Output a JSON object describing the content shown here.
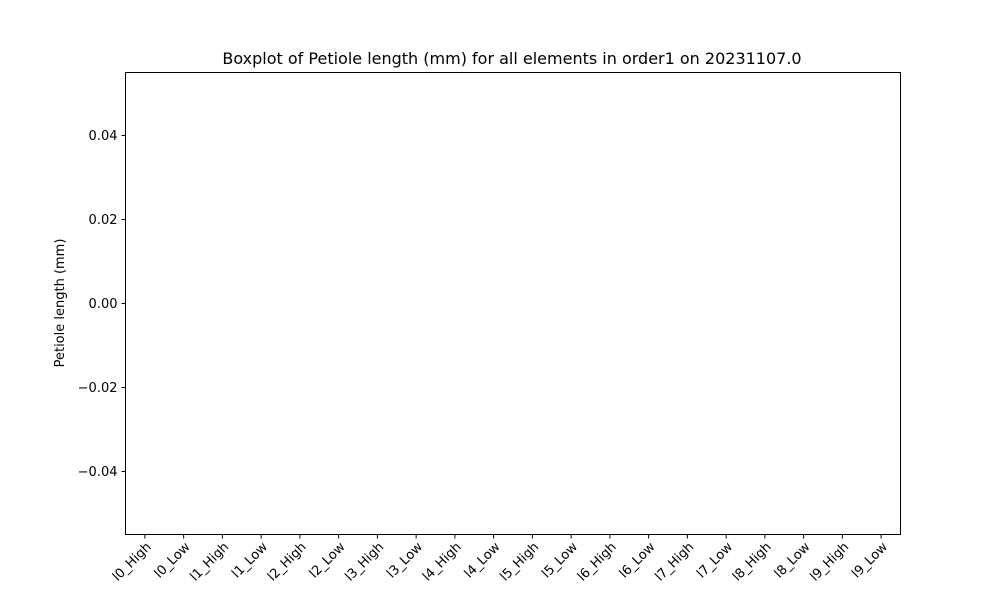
{
  "chart_data": {
    "type": "boxplot",
    "title": "Boxplot of Petiole length (mm) for all elements in order1 on 20231107.0",
    "xlabel": "",
    "ylabel": "Petiole length (mm)",
    "ylim": [
      -0.055,
      0.055
    ],
    "yticks": [
      0.04,
      0.02,
      0.0,
      -0.02,
      -0.04
    ],
    "ytick_labels": [
      "0.04",
      "0.02",
      "0.00",
      "−0.02",
      "−0.04"
    ],
    "categories": [
      "l0_High",
      "l0_Low",
      "l1_High",
      "l1_Low",
      "l2_High",
      "l2_Low",
      "l3_High",
      "l3_Low",
      "l4_High",
      "l4_Low",
      "l5_High",
      "l5_Low",
      "l6_High",
      "l6_Low",
      "l7_High",
      "l7_Low",
      "l8_High",
      "l8_Low",
      "l9_High",
      "l9_Low"
    ],
    "series": [],
    "grid": false,
    "legend": "none"
  }
}
